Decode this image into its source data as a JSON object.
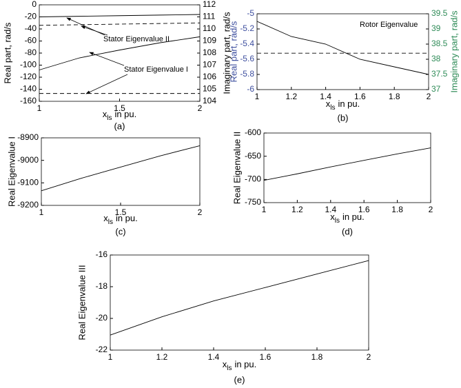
{
  "chart_data": [
    {
      "type": "line",
      "panel_label": "(a)",
      "xlabel": {
        "base": "x",
        "subscript": "ls",
        "suffix": "in pu."
      },
      "ylabel": "Real part, rad/s",
      "y2label": "Imaginary part, rad/s",
      "x": [
        1,
        1.25,
        1.5,
        1.75,
        2
      ],
      "xlim": [
        1,
        2
      ],
      "xticks": [
        1,
        1.5,
        2
      ],
      "ylim": [
        -160,
        0
      ],
      "yticks": [
        0,
        -20,
        -40,
        -60,
        -80,
        -100,
        -120,
        -140,
        -160
      ],
      "y2lim": [
        104,
        112
      ],
      "y2ticks": [
        104,
        105,
        106,
        107,
        108,
        109,
        110,
        111,
        112
      ],
      "series": [
        {
          "color": "#000000",
          "dashed": false,
          "axis": "y",
          "values": [
            -20,
            -19,
            -18,
            -17,
            -16
          ]
        },
        {
          "color": "#000000",
          "dashed": true,
          "axis": "y2",
          "values": [
            110.3,
            110.35,
            110.4,
            110.45,
            110.5
          ]
        },
        {
          "color": "#000000",
          "dashed": false,
          "axis": "y",
          "values": [
            -108,
            -88,
            -75,
            -63,
            -53
          ]
        },
        {
          "color": "#000000",
          "dashed": true,
          "axis": "y2",
          "values": [
            104.65,
            104.65,
            104.65,
            104.65,
            104.65
          ]
        }
      ],
      "annotations": [
        "Stator Eigenvalue II",
        "Stator Eigenvalue I"
      ]
    },
    {
      "type": "line",
      "panel_label": "(b)",
      "xlabel": {
        "base": "x",
        "subscript": "ls",
        "suffix": "in pu."
      },
      "ylabel": "Real part, rad/s",
      "y2label": "Imaginary part, rad/s",
      "y_color": "#3d4e9e",
      "y2_color": "#2e8b57",
      "x": [
        1,
        1.2,
        1.4,
        1.6,
        1.8,
        2
      ],
      "xlim": [
        1,
        2
      ],
      "xticks": [
        1,
        1.2,
        1.4,
        1.6,
        1.8,
        2
      ],
      "ylim": [
        -6,
        -5
      ],
      "yticks": [
        -5,
        -5.2,
        -5.4,
        -5.6,
        -5.8,
        -6
      ],
      "y2lim": [
        37,
        39.5
      ],
      "y2ticks": [
        37,
        37.5,
        38,
        38.5,
        39,
        39.5
      ],
      "series": [
        {
          "color": "#000000",
          "dashed": false,
          "axis": "y",
          "values": [
            -5.1,
            -5.3,
            -5.4,
            -5.6,
            -5.7,
            -5.8
          ]
        },
        {
          "color": "#000000",
          "dashed": true,
          "axis": "y2",
          "values": [
            38.2,
            38.2,
            38.2,
            38.2,
            38.2,
            38.2
          ]
        }
      ],
      "annotations": [
        "Rotor Eigenvalue"
      ]
    },
    {
      "type": "line",
      "panel_label": "(c)",
      "xlabel": {
        "base": "x",
        "subscript": "ls",
        "suffix": "in pu."
      },
      "ylabel": "Real Eigenvalue I",
      "x": [
        1,
        1.25,
        1.5,
        1.75,
        2
      ],
      "xlim": [
        1,
        2
      ],
      "xticks": [
        1,
        1.5,
        2
      ],
      "ylim": [
        -9200,
        -8900
      ],
      "yticks": [
        -9200,
        -9100,
        -9000,
        -8900
      ],
      "series": [
        {
          "color": "#000000",
          "dashed": false,
          "axis": "y",
          "values": [
            -9135,
            -9080,
            -9030,
            -8980,
            -8935
          ]
        }
      ]
    },
    {
      "type": "line",
      "panel_label": "(d)",
      "xlabel": {
        "base": "x",
        "subscript": "ls",
        "suffix": "in pu."
      },
      "ylabel": "Real Eigenvalue II",
      "x": [
        1,
        1.2,
        1.4,
        1.6,
        1.8,
        2
      ],
      "xlim": [
        1,
        2
      ],
      "xticks": [
        1,
        1.2,
        1.4,
        1.6,
        1.8,
        2
      ],
      "ylim": [
        -750,
        -600
      ],
      "yticks": [
        -750,
        -700,
        -650,
        -600
      ],
      "series": [
        {
          "color": "#000000",
          "dashed": false,
          "axis": "y",
          "values": [
            -702,
            -688,
            -673,
            -659,
            -645,
            -632
          ]
        }
      ]
    },
    {
      "type": "line",
      "panel_label": "(e)",
      "xlabel": {
        "base": "x",
        "subscript": "ls",
        "suffix": "in pu."
      },
      "ylabel": "Real Eigenvalue III",
      "x": [
        1,
        1.2,
        1.4,
        1.6,
        1.8,
        2
      ],
      "xlim": [
        1,
        2
      ],
      "xticks": [
        1,
        1.2,
        1.4,
        1.6,
        1.8,
        2
      ],
      "ylim": [
        -22,
        -16
      ],
      "yticks": [
        -22,
        -20,
        -18,
        -16
      ],
      "series": [
        {
          "color": "#000000",
          "dashed": false,
          "axis": "y",
          "values": [
            -21.05,
            -19.9,
            -18.9,
            -18.05,
            -17.2,
            -16.35
          ]
        }
      ]
    }
  ]
}
